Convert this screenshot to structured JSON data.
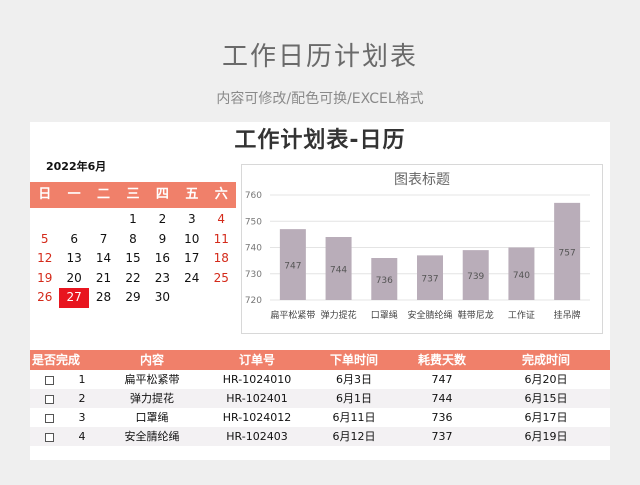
{
  "header": {
    "title": "工作日历计划表",
    "subtitle": "内容可修改/配色可换/EXCEL格式"
  },
  "sheet": {
    "title": "工作计划表-日历",
    "calendar": {
      "month_label": "2022年6月",
      "weekdays": [
        "日",
        "一",
        "二",
        "三",
        "四",
        "五",
        "六"
      ],
      "leading_blanks": 3,
      "days": [
        1,
        2,
        3,
        4,
        5,
        6,
        7,
        8,
        9,
        10,
        11,
        12,
        13,
        14,
        15,
        16,
        17,
        18,
        19,
        20,
        21,
        22,
        23,
        24,
        25,
        26,
        27,
        28,
        29,
        30
      ],
      "weekend_color": "#d42a1a",
      "today": 27,
      "today_color": "#e8151f",
      "header_color": "#f0806a"
    },
    "chart_data": {
      "type": "bar",
      "title": "图表标题",
      "categories": [
        "扁平松紧带",
        "弹力提花",
        "口罩绳",
        "安全腈纶绳",
        "鞋带尼龙",
        "工作证",
        "挂吊牌"
      ],
      "values": [
        747,
        744,
        736,
        737,
        739,
        740,
        757
      ],
      "ylim": [
        720,
        760
      ],
      "yticks": [
        720,
        730,
        740,
        750,
        760
      ],
      "grid": true,
      "bar_color": "#b9adb9"
    },
    "table": {
      "headers": [
        "是否完成",
        "内容",
        "订单号",
        "下单时间",
        "耗费天数",
        "完成时间"
      ],
      "rows": [
        {
          "no": "1",
          "content": "扁平松紧带",
          "order": "HR-1024010",
          "date": "6月3日",
          "days": "747",
          "done": "6月20日"
        },
        {
          "no": "2",
          "content": "弹力提花",
          "order": "HR-102401",
          "date": "6月1日",
          "days": "744",
          "done": "6月15日"
        },
        {
          "no": "3",
          "content": "口罩绳",
          "order": "HR-1024012",
          "date": "6月11日",
          "days": "736",
          "done": "6月17日"
        },
        {
          "no": "4",
          "content": "安全腈纶绳",
          "order": "HR-102403",
          "date": "6月12日",
          "days": "737",
          "done": "6月19日"
        }
      ]
    }
  }
}
